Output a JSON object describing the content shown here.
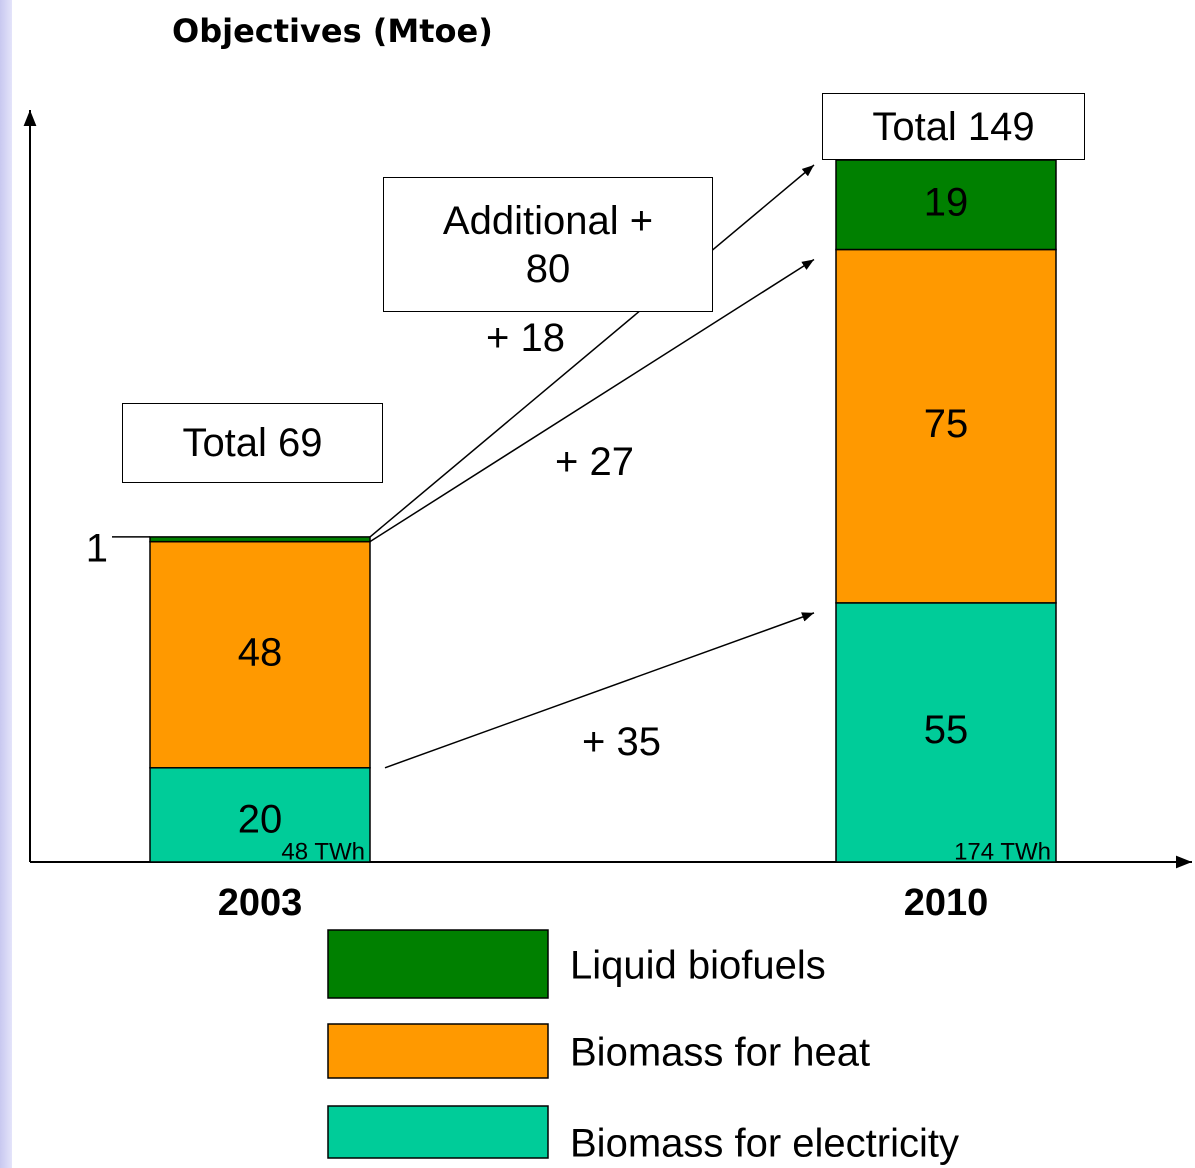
{
  "chart_data": {
    "type": "stacked_bar",
    "title": "Objectives (Mtoe)",
    "categories": [
      "2003",
      "2010"
    ],
    "series": [
      {
        "name": "Biomass for electricity",
        "color": "#00cc99",
        "values": [
          20,
          55
        ]
      },
      {
        "name": "Biomass for heat",
        "color": "#ff9900",
        "values": [
          48,
          75
        ]
      },
      {
        "name": "Liquid biofuels",
        "color": "#008000",
        "values": [
          1,
          19
        ]
      }
    ],
    "bar_notes": [
      "48 TWh",
      "174 TWh"
    ],
    "totals": [
      "Total 69",
      "Total 149"
    ],
    "additional": "Additional + 80",
    "increments": [
      "+ 35",
      "+ 27",
      "+ 18"
    ]
  }
}
